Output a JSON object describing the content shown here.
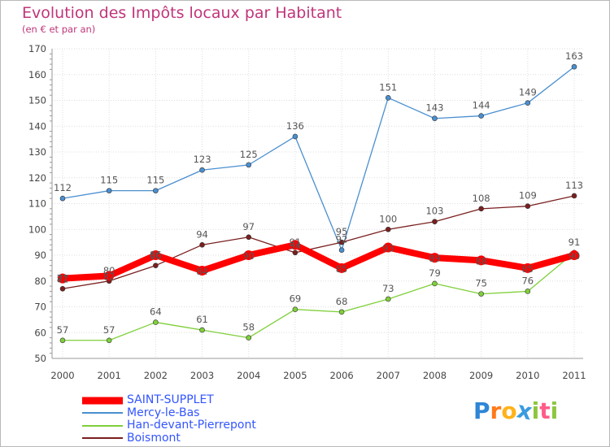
{
  "title": "Evolution des Impôts locaux par Habitant",
  "subtitle": "(en € et par an)",
  "logo": {
    "letters": [
      "P",
      "r",
      "o",
      "x",
      "i",
      "t",
      "i"
    ],
    "colors": [
      "#2e86d6",
      "#ff7a1a",
      "#ffb21a",
      "#3a9be0",
      "#8dc63f",
      "#ff5c8a",
      "#8dc63f"
    ]
  },
  "colors": {
    "saint_supplet": "#ff0000",
    "mercy": "#4a8fd0",
    "han": "#7fcf3a",
    "boismont": "#7a1f1f",
    "title": "#c0357a",
    "legend_text": "#3355ff",
    "grid": "#dddddd"
  },
  "chart_data": {
    "type": "line",
    "title": "Evolution des Impôts locaux par Habitant",
    "subtitle": "(en € et par an)",
    "x": [
      "2000",
      "2001",
      "2002",
      "2003",
      "2004",
      "2005",
      "2006",
      "2007",
      "2008",
      "2009",
      "2010",
      "2011"
    ],
    "ylim": [
      50,
      170
    ],
    "yticks": [
      "50",
      "60",
      "70",
      "80",
      "90",
      "100",
      "110",
      "120",
      "130",
      "140",
      "150",
      "160",
      "170"
    ],
    "grid": true,
    "legend_position": "bottom-left",
    "series": [
      {
        "name": "SAINT-SUPPLET",
        "color": "#ff0000",
        "values": [
          81,
          82,
          90,
          84,
          90,
          94,
          85,
          93,
          89,
          88,
          85,
          90
        ],
        "labels": [
          "81",
          "82",
          "90",
          "84",
          "90",
          "94",
          "85",
          "93",
          "89",
          "88",
          "85",
          "90"
        ]
      },
      {
        "name": "Mercy-le-Bas",
        "color": "#4a8fd0",
        "values": [
          112,
          115,
          115,
          123,
          125,
          136,
          92,
          151,
          143,
          144,
          149,
          163
        ],
        "labels": [
          "112",
          "115",
          "115",
          "123",
          "125",
          "136",
          "92",
          "151",
          "143",
          "144",
          "149",
          "163"
        ]
      },
      {
        "name": "Han-devant-Pierrepont",
        "color": "#7fcf3a",
        "values": [
          57,
          57,
          64,
          61,
          58,
          69,
          68,
          73,
          79,
          75,
          76,
          91
        ],
        "labels": [
          "57",
          "57",
          "64",
          "61",
          "58",
          "69",
          "68",
          "73",
          "79",
          "75",
          "76",
          "91"
        ]
      },
      {
        "name": "Boismont",
        "color": "#7a1f1f",
        "values": [
          77,
          80,
          86,
          94,
          97,
          91,
          95,
          100,
          103,
          108,
          109,
          113
        ],
        "labels": [
          "77",
          "80",
          "86",
          "94",
          "97",
          "91",
          "95",
          "100",
          "103",
          "108",
          "109",
          "113"
        ]
      }
    ]
  }
}
